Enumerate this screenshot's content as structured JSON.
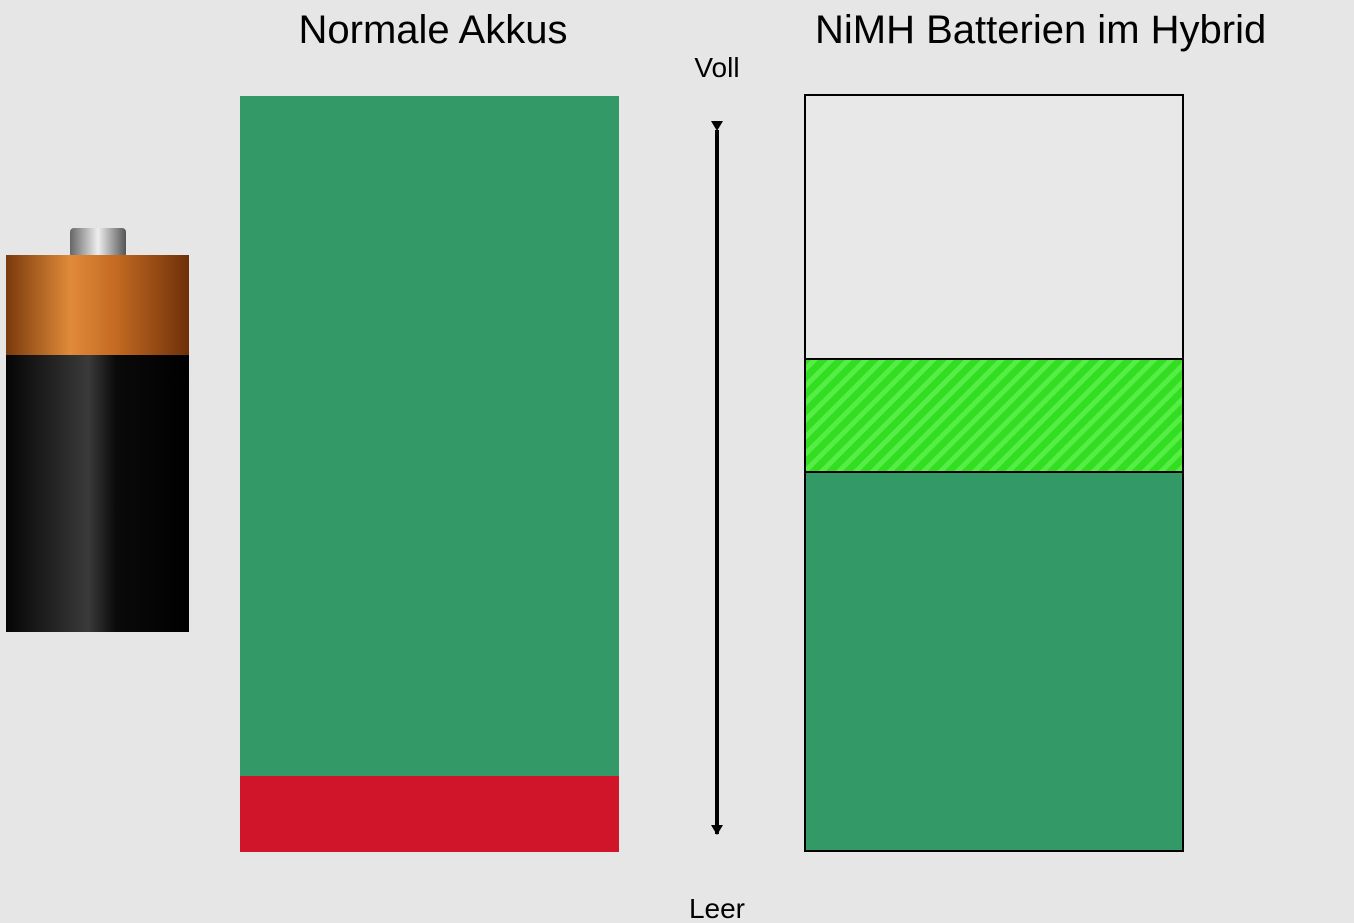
{
  "titles": {
    "left": "Normale Akkus",
    "right": "NiMH Batterien im Hybrid"
  },
  "scale": {
    "top": "Voll",
    "bottom": "Leer"
  }
}
